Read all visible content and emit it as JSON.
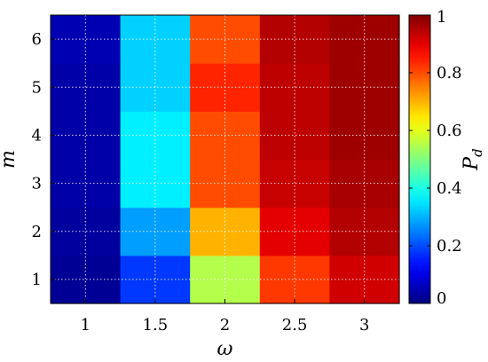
{
  "chart_data": {
    "type": "heatmap",
    "xlabel": "ω",
    "ylabel": "m",
    "colorbar_label_main": "P",
    "colorbar_label_sub": "d",
    "x_categories": [
      1,
      1.5,
      2,
      2.5,
      3
    ],
    "x_tick_labels": [
      "1",
      "1.5",
      "2",
      "2.5",
      "3"
    ],
    "y_categories": [
      1,
      2,
      3,
      4,
      5,
      6
    ],
    "y_tick_labels": [
      "1",
      "2",
      "3",
      "4",
      "5",
      "6"
    ],
    "values": [
      [
        0.02,
        0.18,
        0.55,
        0.82,
        0.92
      ],
      [
        0.03,
        0.28,
        0.7,
        0.9,
        0.95
      ],
      [
        0.04,
        0.36,
        0.8,
        0.93,
        0.96
      ],
      [
        0.04,
        0.36,
        0.8,
        0.94,
        0.97
      ],
      [
        0.04,
        0.33,
        0.84,
        0.94,
        0.97
      ],
      [
        0.05,
        0.33,
        0.8,
        0.95,
        0.97
      ]
    ],
    "colorbar": {
      "range": [
        0,
        1
      ],
      "ticks": [
        0,
        0.2,
        0.4,
        0.6,
        0.8,
        1
      ],
      "tick_labels": [
        "0",
        "0.2",
        "0.4",
        "0.6",
        "0.8",
        "1"
      ]
    },
    "colormap": "jet",
    "grid": true
  }
}
